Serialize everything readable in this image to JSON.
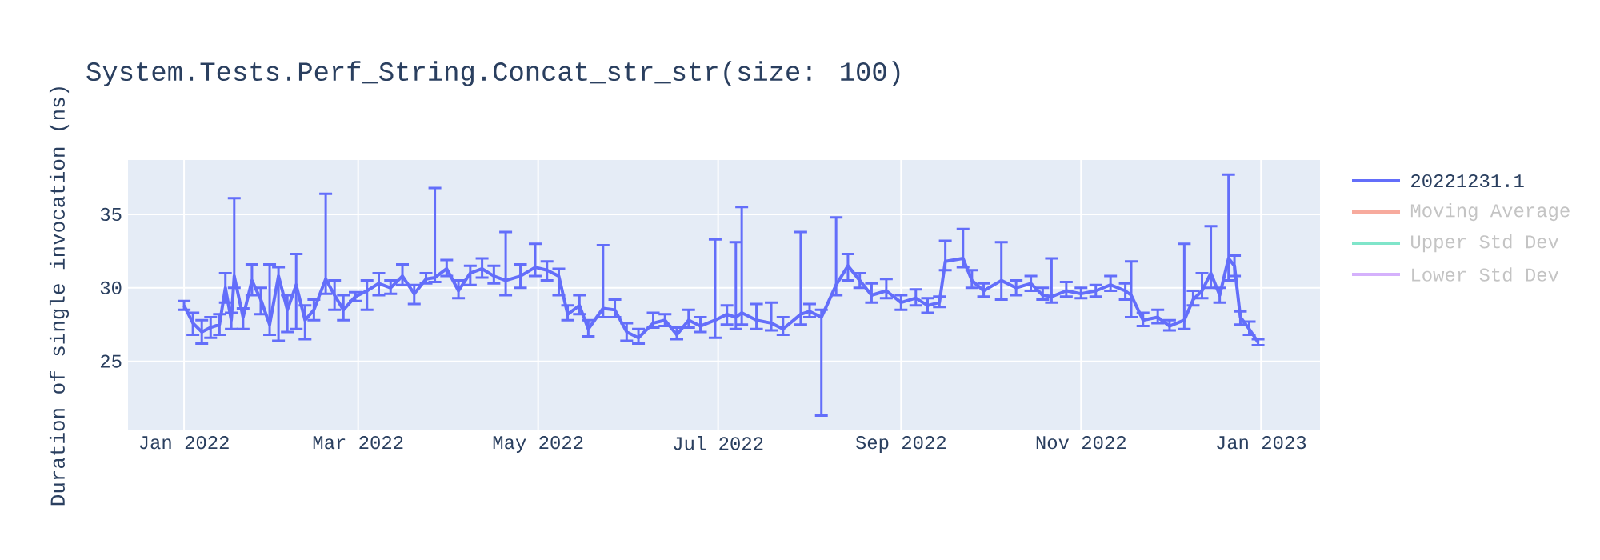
{
  "chart_data": {
    "type": "line",
    "title": "System.Tests.Perf_String.Concat_str_str(size: 100)",
    "ylabel": "Duration of single invocation (ns)",
    "x": [
      "2022-01-01",
      "2022-01-04",
      "2022-01-07",
      "2022-01-10",
      "2022-01-13",
      "2022-01-15",
      "2022-01-17",
      "2022-01-18",
      "2022-01-21",
      "2022-01-24",
      "2022-01-27",
      "2022-01-30",
      "2022-02-02",
      "2022-02-05",
      "2022-02-08",
      "2022-02-11",
      "2022-02-14",
      "2022-02-18",
      "2022-02-21",
      "2022-02-24",
      "2022-02-28",
      "2022-03-04",
      "2022-03-08",
      "2022-03-12",
      "2022-03-16",
      "2022-03-20",
      "2022-03-24",
      "2022-03-27",
      "2022-03-31",
      "2022-04-04",
      "2022-04-08",
      "2022-04-12",
      "2022-04-16",
      "2022-04-20",
      "2022-04-25",
      "2022-04-30",
      "2022-05-04",
      "2022-05-08",
      "2022-05-11",
      "2022-05-15",
      "2022-05-18",
      "2022-05-23",
      "2022-05-27",
      "2022-05-31",
      "2022-06-04",
      "2022-06-09",
      "2022-06-13",
      "2022-06-17",
      "2022-06-21",
      "2022-06-25",
      "2022-06-30",
      "2022-07-04",
      "2022-07-07",
      "2022-07-09",
      "2022-07-14",
      "2022-07-19",
      "2022-07-23",
      "2022-07-29",
      "2022-08-01",
      "2022-08-05",
      "2022-08-10",
      "2022-08-14",
      "2022-08-18",
      "2022-08-22",
      "2022-08-27",
      "2022-09-01",
      "2022-09-06",
      "2022-09-10",
      "2022-09-14",
      "2022-09-16",
      "2022-09-22",
      "2022-09-25",
      "2022-09-29",
      "2022-10-05",
      "2022-10-10",
      "2022-10-15",
      "2022-10-19",
      "2022-10-22",
      "2022-10-27",
      "2022-11-01",
      "2022-11-06",
      "2022-11-11",
      "2022-11-16",
      "2022-11-18",
      "2022-11-22",
      "2022-11-27",
      "2022-12-01",
      "2022-12-06",
      "2022-12-09",
      "2022-12-12",
      "2022-12-15",
      "2022-12-18",
      "2022-12-21",
      "2022-12-23",
      "2022-12-25",
      "2022-12-28",
      "2022-12-31"
    ],
    "series": [
      {
        "name": "20221231.1",
        "color": "#636efa",
        "values": [
          28.8,
          27.6,
          27.0,
          27.3,
          27.5,
          30.0,
          27.8,
          30.8,
          28.0,
          30.5,
          29.2,
          27.5,
          30.8,
          28.5,
          30.2,
          27.8,
          28.5,
          30.6,
          29.5,
          28.5,
          29.4,
          29.8,
          30.3,
          30.0,
          30.8,
          29.6,
          30.6,
          30.7,
          31.3,
          29.8,
          31.0,
          31.3,
          30.8,
          30.5,
          30.8,
          31.4,
          31.2,
          30.8,
          28.2,
          28.8,
          27.2,
          28.6,
          28.5,
          27.0,
          26.6,
          27.6,
          27.8,
          26.8,
          27.8,
          27.4,
          27.8,
          28.2,
          28.0,
          28.3,
          27.8,
          27.6,
          27.2,
          28.2,
          28.4,
          28.0,
          30.2,
          31.5,
          30.5,
          29.5,
          29.8,
          29.0,
          29.3,
          28.8,
          29.0,
          31.8,
          32.0,
          30.5,
          29.8,
          30.5,
          30.0,
          30.3,
          29.5,
          29.4,
          29.8,
          29.6,
          29.8,
          30.2,
          29.8,
          29.5,
          27.8,
          28.0,
          27.4,
          27.8,
          29.2,
          29.8,
          31.0,
          29.5,
          32.0,
          31.5,
          28.0,
          27.2,
          26.3
        ],
        "errors": [
          [
            28.5,
            29.1
          ],
          [
            26.8,
            28.3
          ],
          [
            26.2,
            27.8
          ],
          [
            26.6,
            28.0
          ],
          [
            26.8,
            28.2
          ],
          [
            29.0,
            31.0
          ],
          [
            27.2,
            28.3
          ],
          [
            30.0,
            36.1
          ],
          [
            27.2,
            28.6
          ],
          [
            29.5,
            31.6
          ],
          [
            28.2,
            30.0
          ],
          [
            26.8,
            31.6
          ],
          [
            26.4,
            31.4
          ],
          [
            27.0,
            29.5
          ],
          [
            27.2,
            32.3
          ],
          [
            26.5,
            28.8
          ],
          [
            27.8,
            29.2
          ],
          [
            29.6,
            36.4
          ],
          [
            28.5,
            30.5
          ],
          [
            27.8,
            29.5
          ],
          [
            29.1,
            29.7
          ],
          [
            28.5,
            30.5
          ],
          [
            29.5,
            31.0
          ],
          [
            29.6,
            30.5
          ],
          [
            30.2,
            31.6
          ],
          [
            28.9,
            30.2
          ],
          [
            30.3,
            31.0
          ],
          [
            30.4,
            36.8
          ],
          [
            30.8,
            31.9
          ],
          [
            29.3,
            30.5
          ],
          [
            30.2,
            31.5
          ],
          [
            30.7,
            32.0
          ],
          [
            30.3,
            31.5
          ],
          [
            29.5,
            33.8
          ],
          [
            30.0,
            31.6
          ],
          [
            30.8,
            33.0
          ],
          [
            30.5,
            31.8
          ],
          [
            29.5,
            31.3
          ],
          [
            27.8,
            28.8
          ],
          [
            28.2,
            29.5
          ],
          [
            26.7,
            27.8
          ],
          [
            28.0,
            32.9
          ],
          [
            28.0,
            29.2
          ],
          [
            26.4,
            27.6
          ],
          [
            26.2,
            27.2
          ],
          [
            27.3,
            28.3
          ],
          [
            27.4,
            28.2
          ],
          [
            26.5,
            27.3
          ],
          [
            27.3,
            28.5
          ],
          [
            27.0,
            28.0
          ],
          [
            26.6,
            33.3
          ],
          [
            27.5,
            28.8
          ],
          [
            27.2,
            33.1
          ],
          [
            27.5,
            35.5
          ],
          [
            27.2,
            28.9
          ],
          [
            27.1,
            29.0
          ],
          [
            26.8,
            28.0
          ],
          [
            27.5,
            33.8
          ],
          [
            28.0,
            28.9
          ],
          [
            21.3,
            28.5
          ],
          [
            29.5,
            34.8
          ],
          [
            30.5,
            32.3
          ],
          [
            30.0,
            31.0
          ],
          [
            29.0,
            30.3
          ],
          [
            29.3,
            30.6
          ],
          [
            28.5,
            29.5
          ],
          [
            28.8,
            29.9
          ],
          [
            28.3,
            29.3
          ],
          [
            28.7,
            29.4
          ],
          [
            31.2,
            33.2
          ],
          [
            31.4,
            34.0
          ],
          [
            30.0,
            31.2
          ],
          [
            29.4,
            30.3
          ],
          [
            29.2,
            33.1
          ],
          [
            29.5,
            30.5
          ],
          [
            29.8,
            30.8
          ],
          [
            29.2,
            30.0
          ],
          [
            29.0,
            32.0
          ],
          [
            29.4,
            30.4
          ],
          [
            29.3,
            30.0
          ],
          [
            29.4,
            30.2
          ],
          [
            29.8,
            30.8
          ],
          [
            29.2,
            30.3
          ],
          [
            28.0,
            31.8
          ],
          [
            27.4,
            28.3
          ],
          [
            27.6,
            28.5
          ],
          [
            27.1,
            27.8
          ],
          [
            27.2,
            33.0
          ],
          [
            28.8,
            29.8
          ],
          [
            29.3,
            31.0
          ],
          [
            30.0,
            34.2
          ],
          [
            29.0,
            30.0
          ],
          [
            30.5,
            37.7
          ],
          [
            30.8,
            32.2
          ],
          [
            27.5,
            28.4
          ],
          [
            26.8,
            27.7
          ],
          [
            26.1,
            26.5
          ]
        ]
      },
      {
        "name": "Moving Average",
        "color": "#f7aa9d",
        "values": [
          null,
          null,
          null,
          null,
          null,
          null,
          null,
          null,
          null,
          null,
          null,
          null,
          null,
          null,
          null,
          null,
          null,
          null,
          null,
          null,
          null,
          null,
          null,
          null,
          null,
          null,
          null,
          null,
          null,
          null,
          null,
          null,
          null,
          null,
          null,
          null,
          null,
          null,
          null,
          null,
          null,
          null,
          null,
          null,
          null,
          null,
          null,
          null,
          null,
          null,
          null,
          null,
          null,
          null,
          null,
          null,
          null,
          null,
          null,
          null,
          null,
          null,
          null,
          null,
          null,
          null,
          null,
          null,
          null,
          null,
          null,
          null,
          null,
          null,
          null,
          null,
          null,
          null,
          null,
          null,
          null,
          null,
          null,
          null,
          null,
          null,
          null,
          null,
          null,
          null,
          null,
          null,
          null,
          null,
          null,
          null,
          null
        ]
      },
      {
        "name": "Upper Std Dev",
        "color": "#80e5ca",
        "values": [
          null,
          null,
          null,
          null,
          null,
          null,
          null,
          null,
          null,
          null,
          null,
          null,
          null,
          null,
          null,
          null,
          null,
          null,
          null,
          null,
          null,
          null,
          null,
          null,
          null,
          null,
          null,
          null,
          null,
          null,
          null,
          null,
          null,
          null,
          null,
          null,
          null,
          null,
          null,
          null,
          null,
          null,
          null,
          null,
          null,
          null,
          null,
          null,
          null,
          null,
          null,
          null,
          null,
          null,
          null,
          null,
          null,
          null,
          null,
          null,
          null,
          null,
          null,
          null,
          null,
          null,
          null,
          null,
          null,
          null,
          null,
          null,
          null,
          null,
          null,
          null,
          null,
          null,
          null,
          null,
          null,
          null,
          null,
          null,
          null,
          null,
          null,
          null,
          null,
          null,
          null,
          null,
          null,
          null,
          null,
          null,
          null
        ]
      },
      {
        "name": "Lower Std Dev",
        "color": "#d5b1fc",
        "values": [
          null,
          null,
          null,
          null,
          null,
          null,
          null,
          null,
          null,
          null,
          null,
          null,
          null,
          null,
          null,
          null,
          null,
          null,
          null,
          null,
          null,
          null,
          null,
          null,
          null,
          null,
          null,
          null,
          null,
          null,
          null,
          null,
          null,
          null,
          null,
          null,
          null,
          null,
          null,
          null,
          null,
          null,
          null,
          null,
          null,
          null,
          null,
          null,
          null,
          null,
          null,
          null,
          null,
          null,
          null,
          null,
          null,
          null,
          null,
          null,
          null,
          null,
          null,
          null,
          null,
          null,
          null,
          null,
          null,
          null,
          null,
          null,
          null,
          null,
          null,
          null,
          null,
          null,
          null,
          null,
          null,
          null,
          null,
          null,
          null,
          null,
          null,
          null,
          null,
          null,
          null,
          null,
          null,
          null,
          null,
          null,
          null
        ]
      }
    ],
    "xlim": [
      "2021-12-13",
      "2023-01-21"
    ],
    "xticks": [
      {
        "value": "2022-01-01",
        "label": "Jan 2022"
      },
      {
        "value": "2022-03-01",
        "label": "Mar 2022"
      },
      {
        "value": "2022-05-01",
        "label": "May 2022"
      },
      {
        "value": "2022-07-01",
        "label": "Jul 2022"
      },
      {
        "value": "2022-09-01",
        "label": "Sep 2022"
      },
      {
        "value": "2022-11-01",
        "label": "Nov 2022"
      },
      {
        "value": "2023-01-01",
        "label": "Jan 2023"
      }
    ],
    "ylim": [
      20.3,
      38.7
    ],
    "yticks": [
      25,
      30,
      35
    ],
    "grid": true,
    "legend": "top right",
    "line_style": "solid"
  }
}
